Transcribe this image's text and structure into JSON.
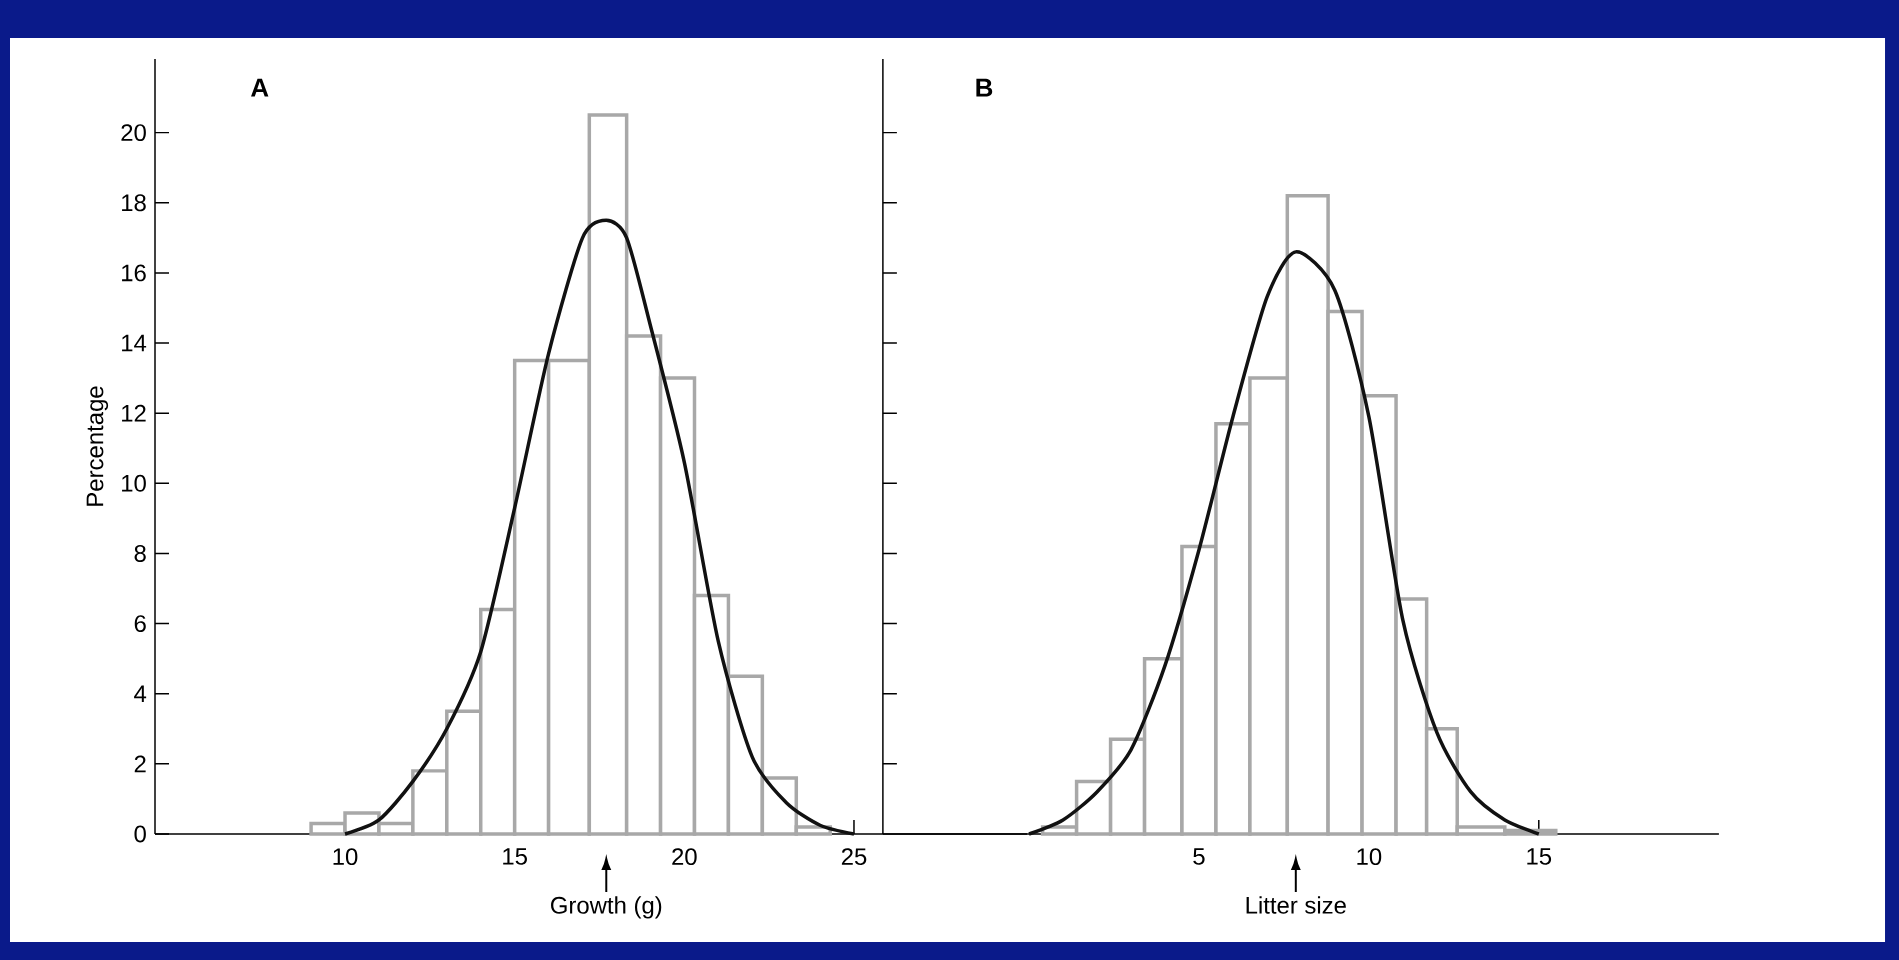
{
  "chart_data": [
    {
      "type": "histogram",
      "title": "A",
      "xlabel": "Growth (g)",
      "ylabel": "Percentage",
      "xlim": [
        4.4,
        30.1
      ],
      "ylim": [
        0,
        22.1
      ],
      "xticks": [
        10,
        15,
        20,
        25
      ],
      "yticks": [
        0,
        2,
        4,
        6,
        8,
        10,
        12,
        14,
        16,
        18,
        20
      ],
      "series": [
        {
          "type": "histogram",
          "color": "#a8a8a8",
          "bins": [
            9,
            10,
            11,
            12,
            13,
            14,
            15,
            16,
            17.2,
            18.3,
            19.3,
            20.3,
            21.3,
            22.3,
            23.3,
            24.3
          ],
          "values": [
            0.3,
            0.6,
            0.3,
            1.8,
            3.5,
            6.4,
            13.5,
            13.5,
            20.5,
            14.2,
            13.0,
            6.8,
            4.5,
            1.6,
            0.2
          ]
        },
        {
          "type": "line",
          "color": "#111111",
          "x": [
            10,
            11,
            12,
            13,
            14,
            15,
            16,
            17,
            17.7,
            18.3,
            19,
            20,
            21,
            22,
            23,
            24,
            25
          ],
          "values": [
            0,
            0.4,
            1.5,
            3.0,
            5.2,
            9.3,
            13.7,
            17.0,
            17.5,
            17.0,
            14.5,
            10.6,
            5.5,
            2.2,
            0.9,
            0.25,
            0
          ]
        }
      ]
    },
    {
      "type": "histogram",
      "title": "B",
      "xlabel": "Litter size",
      "xlim": [
        -4.3,
        20.3
      ],
      "ylim": [
        0,
        22.1
      ],
      "xticks": [
        5,
        10,
        15
      ],
      "yticks": [
        {
          "value": 2,
          "label": null
        },
        {
          "value": 4,
          "label": null
        },
        {
          "value": 6,
          "label": null
        },
        {
          "value": 8,
          "label": null
        },
        {
          "value": 10,
          "label": null
        },
        {
          "value": 12,
          "label": null
        },
        {
          "value": 14,
          "label": null
        },
        {
          "value": 16,
          "label": null
        },
        {
          "value": 18,
          "label": null
        },
        {
          "value": 20,
          "label": null
        }
      ],
      "tick_labels": "x",
      "series": [
        {
          "type": "histogram",
          "color": "#a8a8a8",
          "bins": [
            0.4,
            1.4,
            2.4,
            3.4,
            4.5,
            5.5,
            6.5,
            7.6,
            8.8,
            9.8,
            10.8,
            11.7,
            12.6,
            14.0,
            15.5
          ],
          "values": [
            0.2,
            1.5,
            2.7,
            5.0,
            8.2,
            11.7,
            13.0,
            18.2,
            14.9,
            12.5,
            6.7,
            3.0,
            0.2,
            0.1
          ]
        },
        {
          "type": "line",
          "color": "#111111",
          "x": [
            0,
            1,
            2,
            3,
            4,
            5,
            6,
            7,
            7.85,
            9,
            10,
            11,
            12,
            13,
            14,
            15
          ],
          "values": [
            0,
            0.4,
            1.2,
            2.4,
            4.8,
            8.1,
            11.9,
            15.3,
            16.6,
            15.5,
            11.9,
            6.1,
            2.9,
            1.2,
            0.4,
            0
          ]
        }
      ]
    }
  ]
}
